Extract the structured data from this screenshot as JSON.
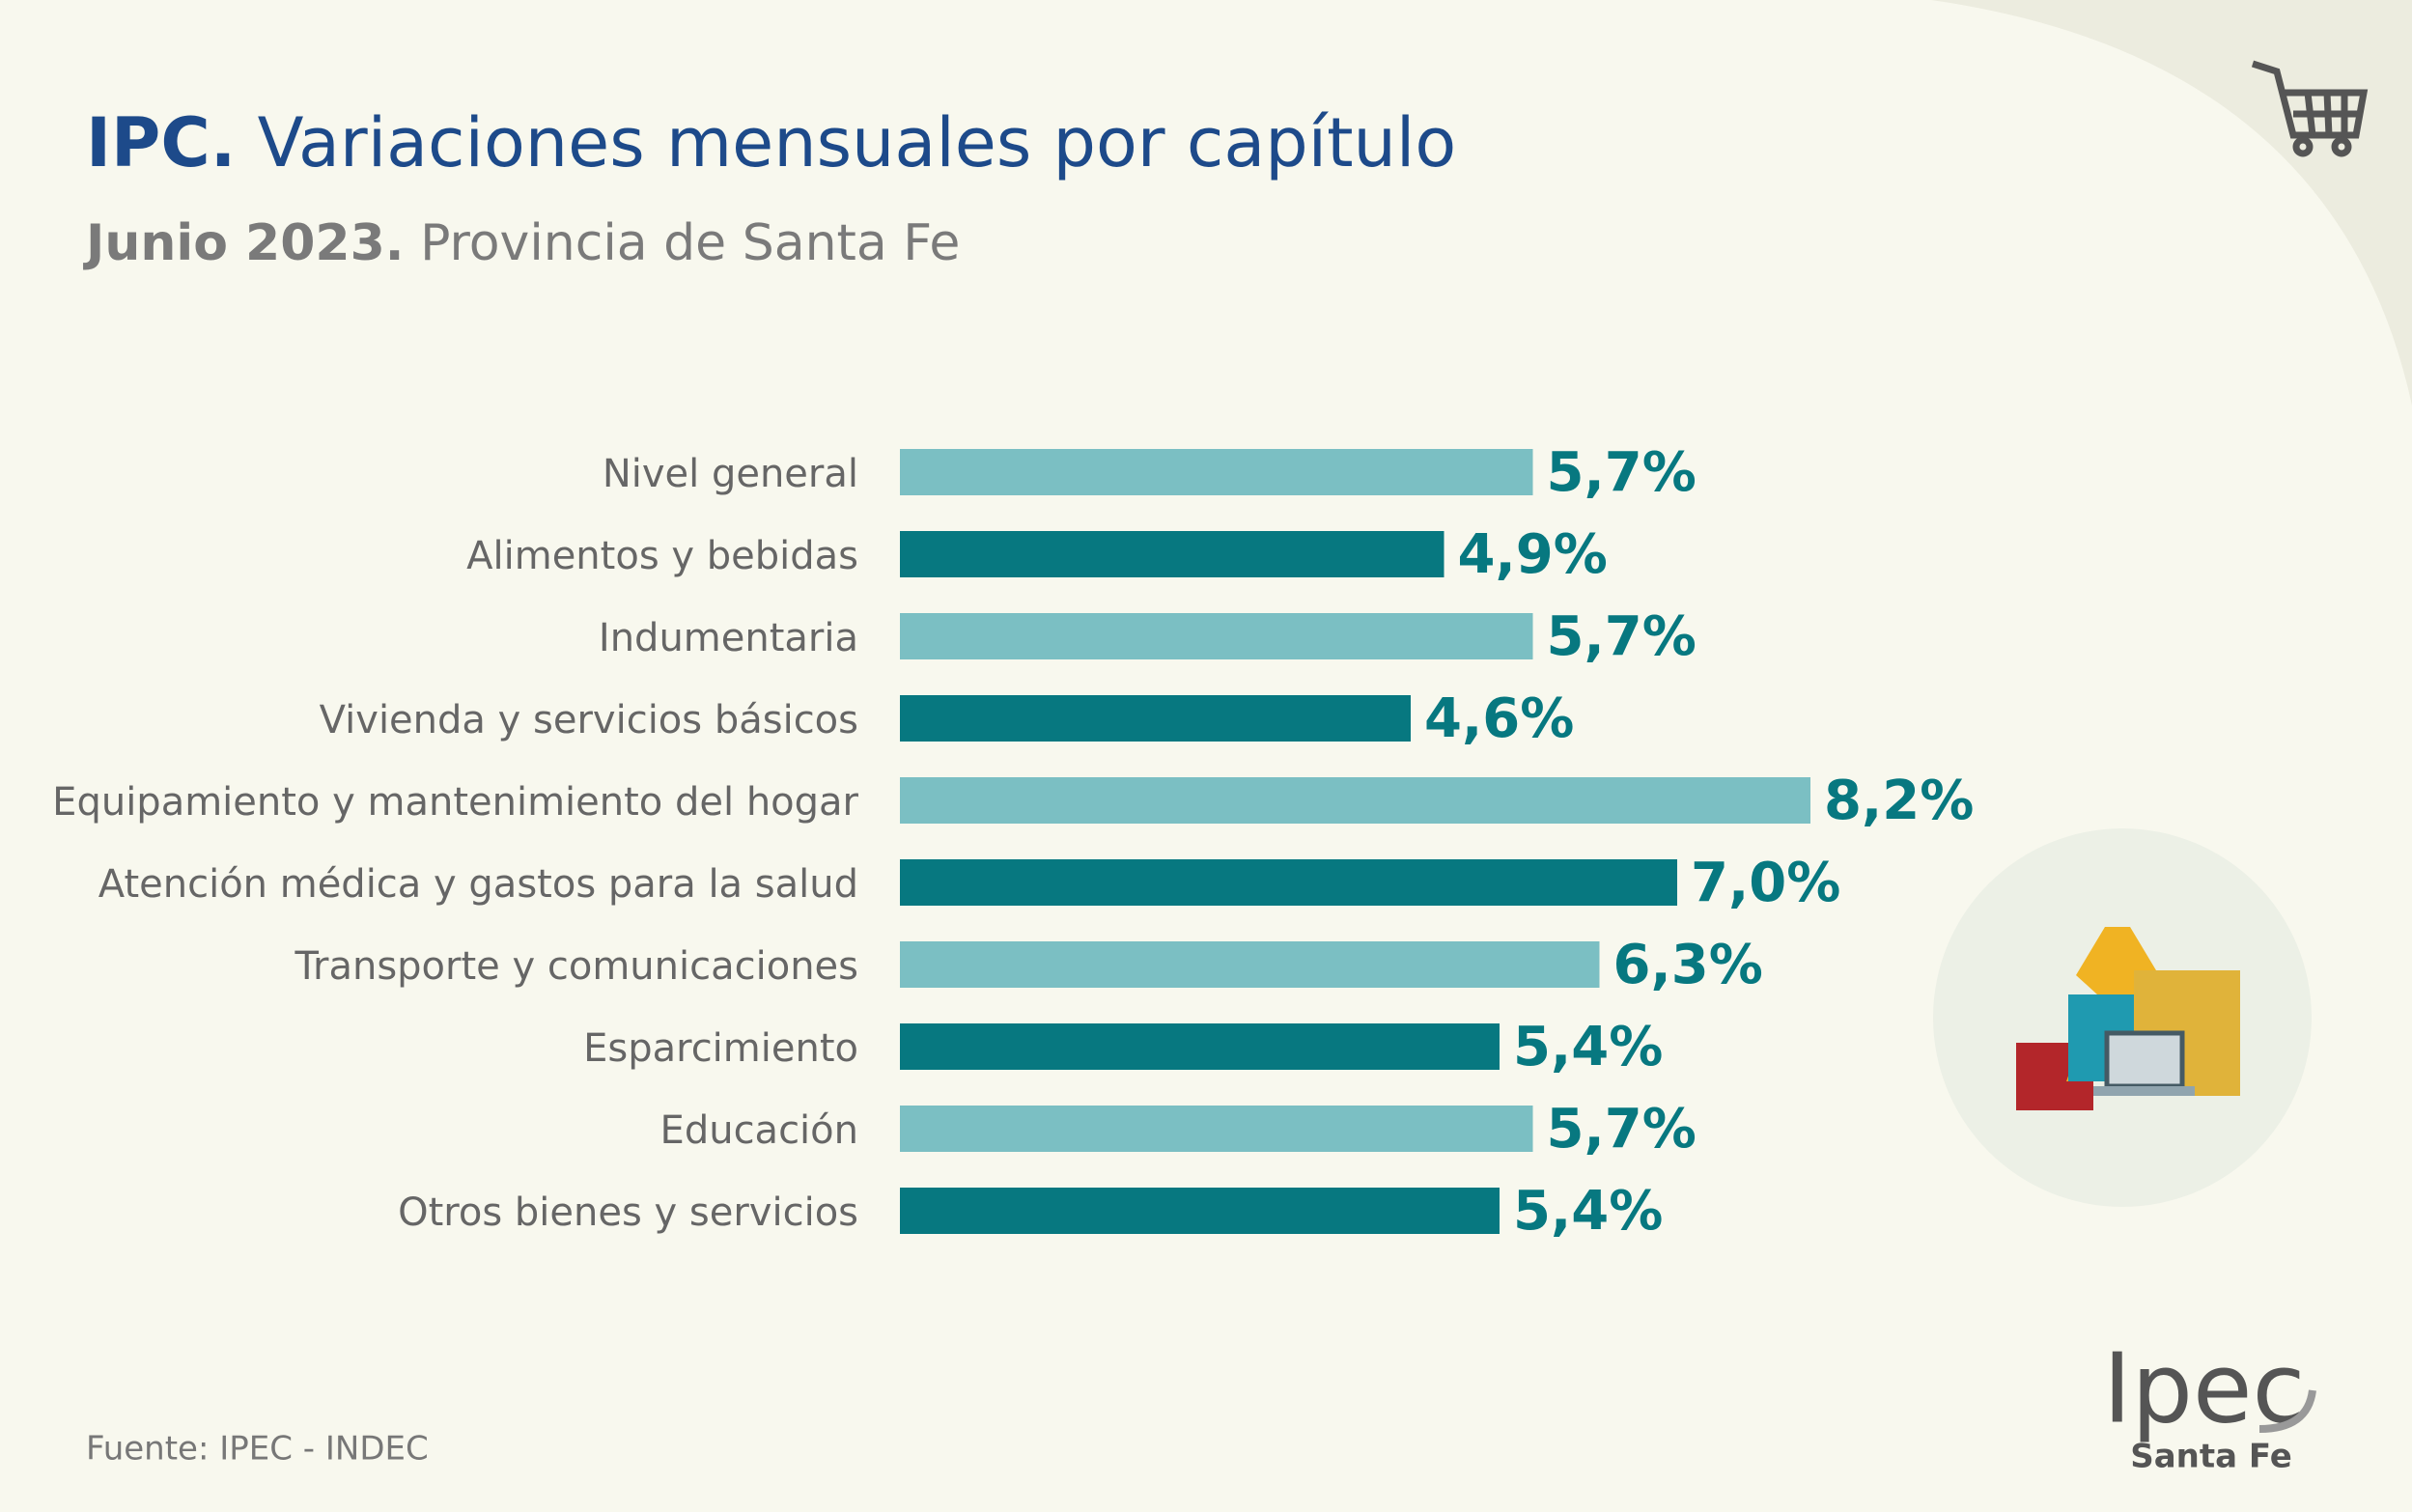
{
  "chart_data": {
    "type": "hbar",
    "title": [
      "IPC.",
      "Variaciones mensuales por capítulo"
    ],
    "subtitle": [
      "Junio 2023.",
      "Provincia de Santa Fe"
    ],
    "categories": [
      "Nivel general",
      "Alimentos y bebidas",
      "Indumentaria",
      "Vivienda y servicios básicos",
      "Equipamiento y mantenimiento del hogar",
      "Atención médica y gastos para la salud",
      "Transporte y comunicaciones",
      "Esparcimiento",
      "Educación",
      "Otros bienes y servicios"
    ],
    "values": [
      5.7,
      4.9,
      5.7,
      4.6,
      8.2,
      7.0,
      6.3,
      5.4,
      5.7,
      5.4
    ],
    "value_labels": [
      "5,7%",
      "4,9%",
      "5,7%",
      "4,6%",
      "8,2%",
      "7,0%",
      "6,3%",
      "5,4%",
      "5,7%",
      "5,4%"
    ],
    "colors": [
      "#7bbfc3",
      "#077880",
      "#7bbfc3",
      "#077880",
      "#7bbfc3",
      "#077880",
      "#7bbfc3",
      "#077880",
      "#7bbfc3",
      "#077880"
    ],
    "label_color": "#077880",
    "source": "Fuente: IPEC - INDEC"
  },
  "logo": {
    "name": "Ipec",
    "place": "Santa Fe"
  }
}
